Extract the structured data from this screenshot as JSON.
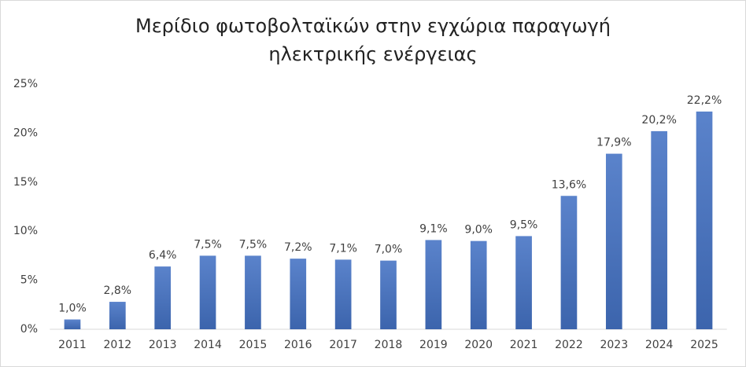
{
  "chart_data": {
    "type": "bar",
    "title": [
      "Μερίδιο φωτοβολταϊκών στην εγχώρια παραγωγή",
      "ηλεκτρικής ενέργειας"
    ],
    "categories": [
      "2011",
      "2012",
      "2013",
      "2014",
      "2015",
      "2016",
      "2017",
      "2018",
      "2019",
      "2020",
      "2021",
      "2022",
      "2023",
      "2024",
      "2025"
    ],
    "values": [
      1.0,
      2.8,
      6.4,
      7.5,
      7.5,
      7.2,
      7.1,
      7.0,
      9.1,
      9.0,
      9.5,
      13.6,
      17.9,
      20.2,
      22.2
    ],
    "value_labels": [
      "1,0%",
      "2,8%",
      "6,4%",
      "7,5%",
      "7,5%",
      "7,2%",
      "7,1%",
      "7,0%",
      "9,1%",
      "9,0%",
      "9,5%",
      "13,6%",
      "17,9%",
      "20,2%",
      "22,2%"
    ],
    "color": "#4472c4",
    "ylim": [
      0,
      25
    ],
    "yticks": [
      {
        "value": 0,
        "label": "0%"
      },
      {
        "value": 5,
        "label": "5%"
      },
      {
        "value": 10,
        "label": "10%"
      },
      {
        "value": 15,
        "label": "15%"
      },
      {
        "value": 20,
        "label": "20%"
      },
      {
        "value": 25,
        "label": "25%"
      }
    ],
    "grid": false
  }
}
